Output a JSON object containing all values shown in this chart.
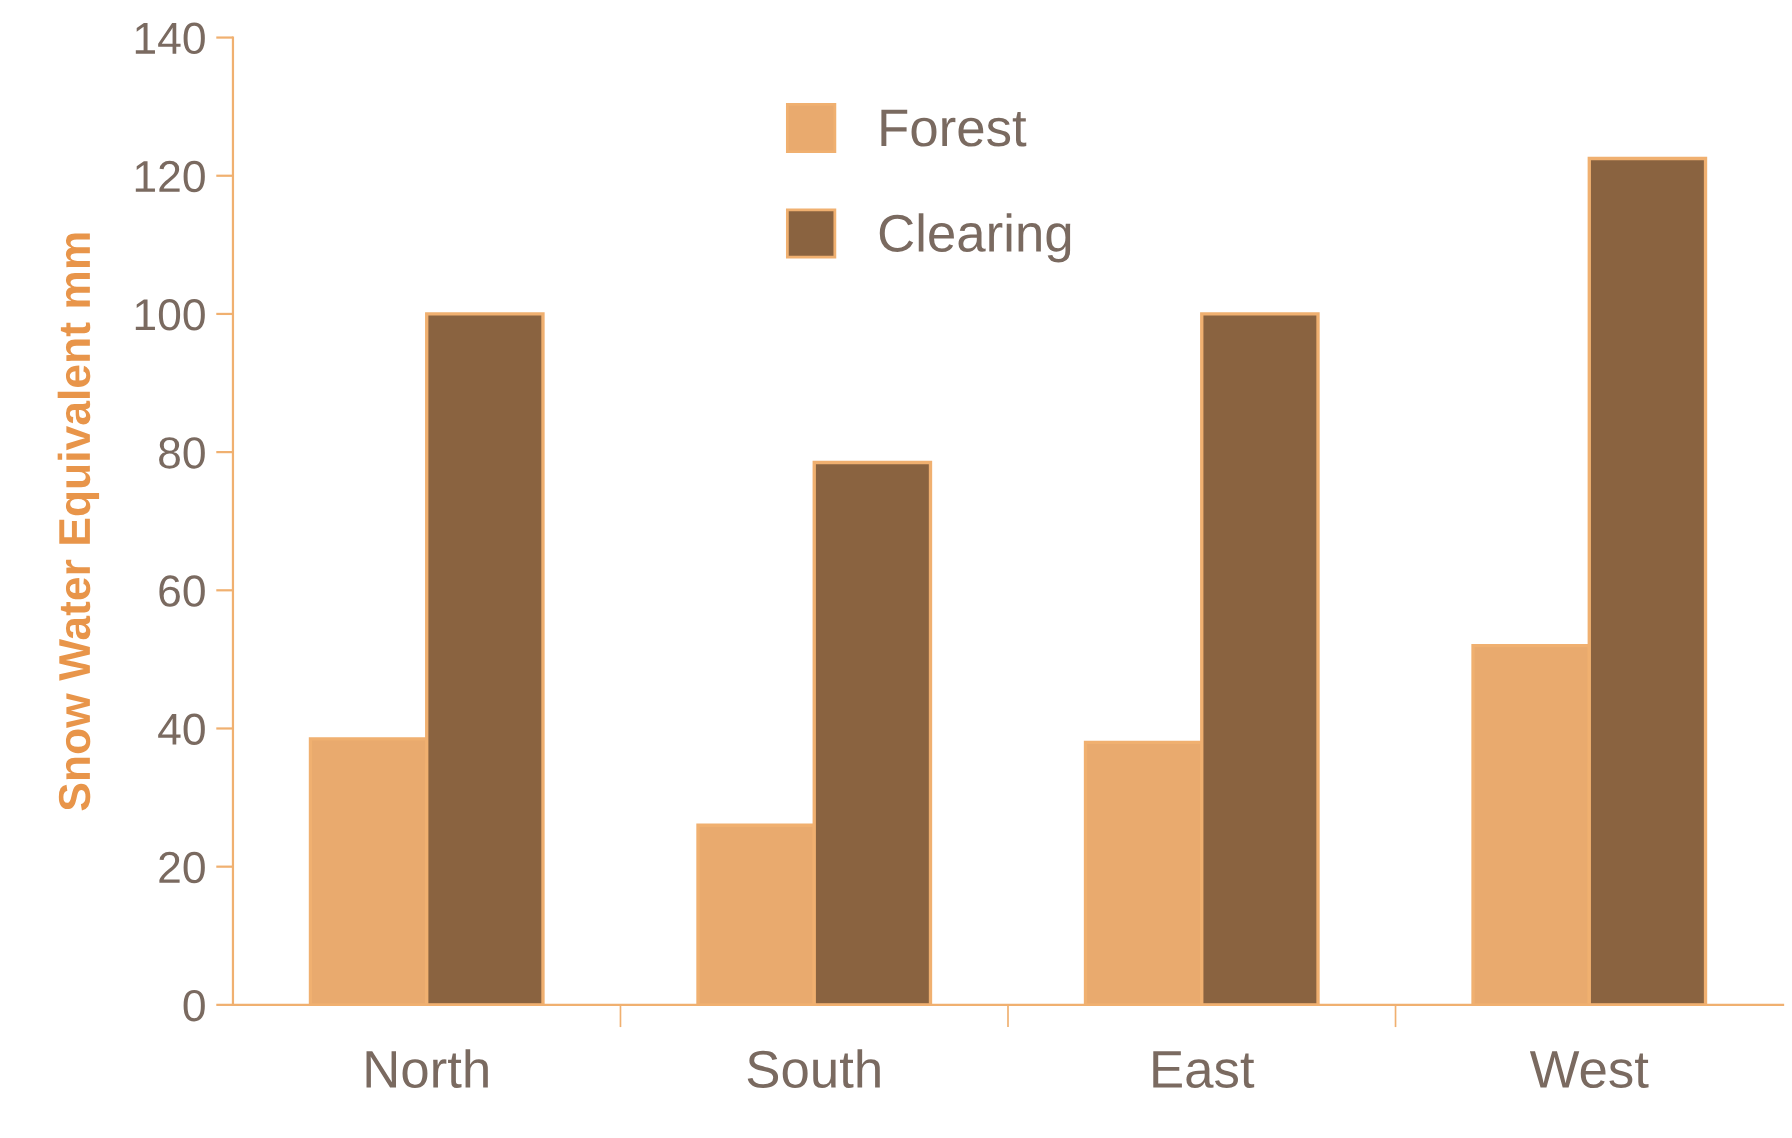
{
  "chart_data": {
    "type": "bar",
    "ylabel": "Snow Water Equivalent mm",
    "categories": [
      "North",
      "South",
      "East",
      "West"
    ],
    "series": [
      {
        "name": "Forest",
        "color": "#e9aa6e",
        "values": [
          38.5,
          26,
          38,
          52
        ]
      },
      {
        "name": "Clearing",
        "color": "#8a6340",
        "values": [
          100,
          78.5,
          100,
          122.5
        ]
      }
    ],
    "ylim": [
      0,
      140
    ],
    "yticks": [
      0,
      20,
      40,
      60,
      80,
      100,
      120,
      140
    ],
    "grid": false,
    "legend": "top"
  }
}
